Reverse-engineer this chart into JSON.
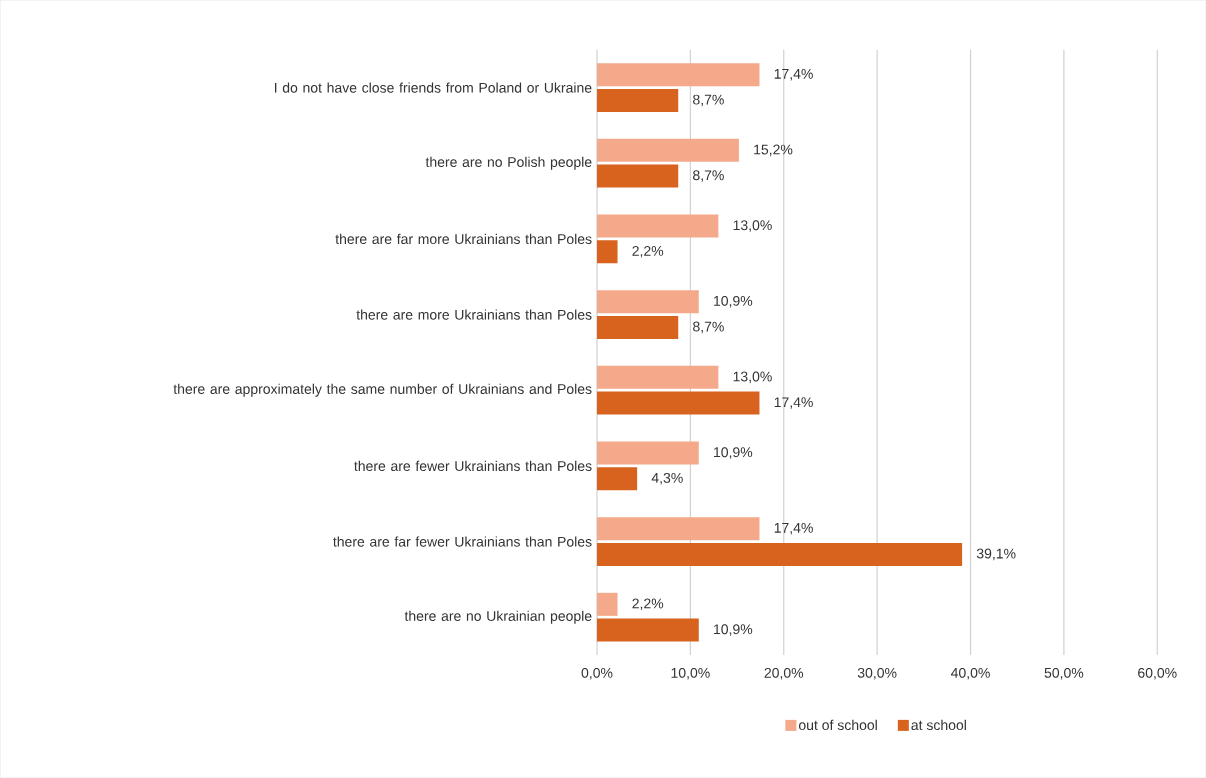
{
  "chart_data": {
    "type": "bar",
    "orientation": "horizontal",
    "categories": [
      "I do not have close friends from Poland or Ukraine",
      "there are no Polish people",
      "there are far more Ukrainians than Poles",
      "there are more Ukrainians than Poles",
      "there are approximately the same number of Ukrainians and Poles",
      "there are fewer Ukrainians than Poles",
      "there are far fewer Ukrainians than Poles",
      "there are no Ukrainian people"
    ],
    "series": [
      {
        "name": "out of school",
        "color": "#f4a98a",
        "values": [
          17.4,
          15.2,
          13.0,
          10.9,
          13.0,
          10.9,
          17.4,
          2.2
        ],
        "value_labels": [
          "17,4%",
          "15,2%",
          "13,0%",
          "10,9%",
          "13,0%",
          "10,9%",
          "17,4%",
          "2,2%"
        ]
      },
      {
        "name": "at school",
        "color": "#d8631f",
        "values": [
          8.7,
          8.7,
          2.2,
          8.7,
          17.4,
          4.3,
          39.1,
          10.9
        ],
        "value_labels": [
          "8,7%",
          "8,7%",
          "2,2%",
          "8,7%",
          "17,4%",
          "4,3%",
          "39,1%",
          "10,9%"
        ]
      }
    ],
    "xlim": [
      0,
      60
    ],
    "xticks": [
      {
        "value": 0,
        "label": "0,0%"
      },
      {
        "value": 10,
        "label": "10,0%"
      },
      {
        "value": 20,
        "label": "20,0%"
      },
      {
        "value": 30,
        "label": "30,0%"
      },
      {
        "value": 40,
        "label": "40,0%"
      },
      {
        "value": 50,
        "label": "50,0%"
      },
      {
        "value": 60,
        "label": "60,0%"
      }
    ],
    "grid": "x",
    "legend": "bottom"
  }
}
